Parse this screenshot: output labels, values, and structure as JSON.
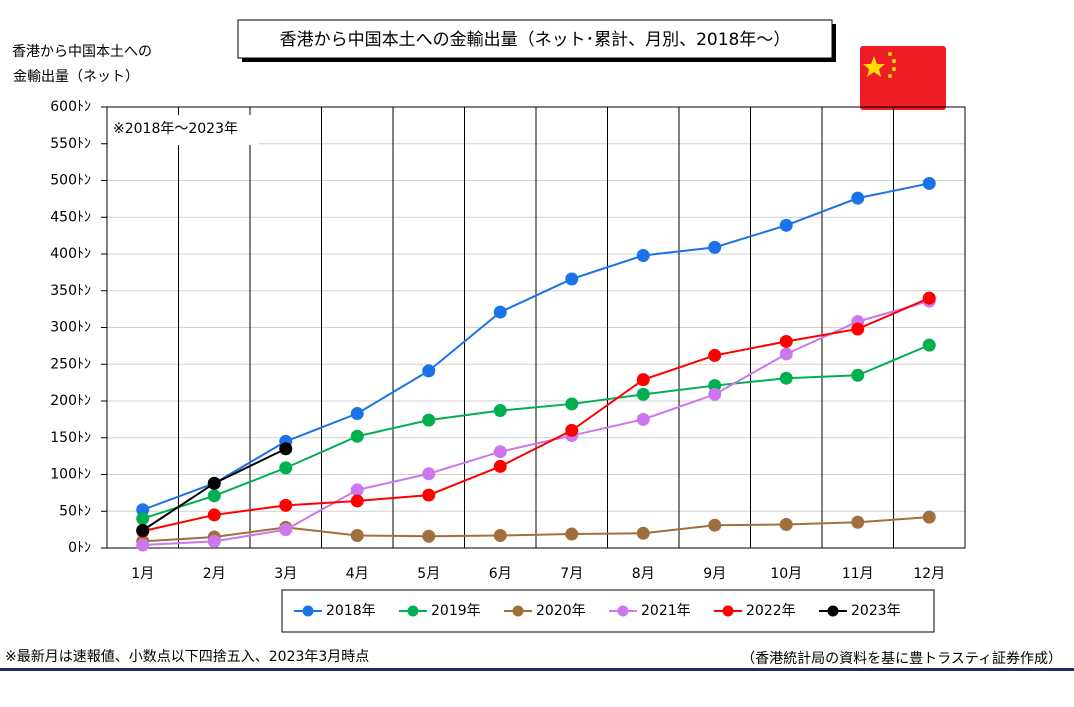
{
  "chart_data": {
    "type": "line",
    "title": "香港から中国本土への金輸出量（ネット･累計、月別、2018年～）",
    "y_label": [
      "香港から中国本土への",
      "金輸出量（ネット）"
    ],
    "annotation": "※2018年～2023年",
    "note": "※最新月は速報値、小数点以下四捨五入、2023年3月時点",
    "source": "（香港統計局の資料を基に豊トラスティ証券作成）",
    "categories": [
      "1月",
      "2月",
      "3月",
      "4月",
      "5月",
      "6月",
      "7月",
      "8月",
      "9月",
      "10月",
      "11月",
      "12月"
    ],
    "series": [
      {
        "name": "2018年",
        "color": "#1a73e8",
        "values": [
          52,
          88,
          145,
          183,
          241,
          321,
          366,
          398,
          409,
          439,
          476,
          496
        ]
      },
      {
        "name": "2019年",
        "color": "#00b050",
        "values": [
          40,
          71,
          109,
          152,
          174,
          187,
          196,
          209,
          221,
          231,
          235,
          276
        ]
      },
      {
        "name": "2020年",
        "color": "#a0703c",
        "values": [
          9,
          15,
          28,
          17,
          16,
          17,
          19,
          20,
          31,
          32,
          35,
          42
        ]
      },
      {
        "name": "2021年",
        "color": "#cc77ee",
        "values": [
          4,
          9,
          25,
          79,
          101,
          131,
          153,
          175,
          209,
          264,
          308,
          336
        ]
      },
      {
        "name": "2022年",
        "color": "#ff0000",
        "values": [
          23,
          45,
          58,
          64,
          72,
          111,
          160,
          229,
          262,
          281,
          298,
          340
        ]
      },
      {
        "name": "2023年",
        "color": "#000000",
        "values": [
          24,
          88,
          135,
          null,
          null,
          null,
          null,
          null,
          null,
          null,
          null,
          null
        ]
      }
    ],
    "ylim": [
      0,
      600
    ],
    "yticks": [
      {
        "value": 0,
        "label": "0ﾄﾝ"
      },
      {
        "value": 50,
        "label": "50ﾄﾝ"
      },
      {
        "value": 100,
        "label": "100ﾄﾝ"
      },
      {
        "value": 150,
        "label": "150ﾄﾝ"
      },
      {
        "value": 200,
        "label": "200ﾄﾝ"
      },
      {
        "value": 250,
        "label": "250ﾄﾝ"
      },
      {
        "value": 300,
        "label": "300ﾄﾝ"
      },
      {
        "value": 350,
        "label": "350ﾄﾝ"
      },
      {
        "value": 400,
        "label": "400ﾄﾝ"
      },
      {
        "value": 450,
        "label": "450ﾄﾝ"
      },
      {
        "value": 500,
        "label": "500ﾄﾝ"
      },
      {
        "value": 550,
        "label": "550ﾄﾝ"
      },
      {
        "value": 600,
        "label": "600ﾄﾝ"
      }
    ],
    "grid": true
  }
}
